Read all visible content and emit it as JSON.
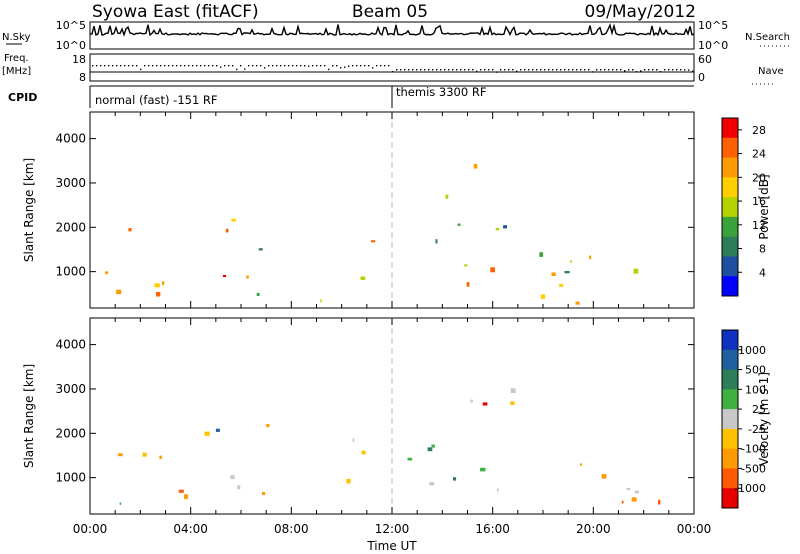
{
  "header": {
    "station": "Syowa East (fitACF)",
    "beam": "Beam 05",
    "date": "09/May/2012"
  },
  "top_panels": {
    "nsky_label": "N.Sky",
    "nsky_ticks": [
      "10^5",
      "10^0"
    ],
    "nsearch_label": "N.Search",
    "nsearch_ticks": [
      "10^5",
      "10^0"
    ],
    "freq_label": [
      "Freq.",
      "[MHz]"
    ],
    "freq_ticks": [
      "18",
      "8"
    ],
    "nave_label": "Nave",
    "nave_ticks": [
      "60",
      "0"
    ],
    "cpid_label": "CPID",
    "cpid_segments": [
      {
        "start_hour": 0,
        "text": "normal (fast) -151 RF"
      },
      {
        "start_hour": 12,
        "text": "themis 3300 RF"
      }
    ]
  },
  "chart_data": [
    {
      "type": "heatmap",
      "title": "",
      "ylabel": "Slant Range [km]",
      "xlabel": "",
      "xlim": [
        0,
        24
      ],
      "ylim": [
        180,
        4600
      ],
      "yticks": [
        "1000",
        "2000",
        "3000",
        "4000"
      ],
      "colorbar": {
        "label": "Power [dB]",
        "ticks": [
          "4",
          "8",
          "12",
          "16",
          "20",
          "24",
          "28"
        ],
        "range": [
          0,
          30
        ],
        "colors": [
          "#0000ff",
          "#1f4fa0",
          "#2e7d5a",
          "#3aa23a",
          "#b4d200",
          "#ffd000",
          "#ff9a00",
          "#ff6000",
          "#f00000"
        ]
      },
      "regions": [
        {
          "t0": 0.2,
          "t1": 3.8,
          "r0": 250,
          "r1": 2100,
          "level": 0.55
        },
        {
          "t0": 4.0,
          "t1": 7.2,
          "r0": 250,
          "r1": 2200,
          "level": 0.6
        },
        {
          "t0": 8.8,
          "t1": 10.2,
          "r0": 250,
          "r1": 1100,
          "level": 0.35
        },
        {
          "t0": 10.3,
          "t1": 11.9,
          "r0": 250,
          "r1": 2000,
          "level": 0.7
        },
        {
          "t0": 12.1,
          "t1": 23.9,
          "r0": 250,
          "r1": 1400,
          "level": 0.6
        },
        {
          "t0": 13.4,
          "t1": 16.8,
          "r0": 1500,
          "r1": 3400,
          "level": 0.55
        }
      ]
    },
    {
      "type": "heatmap",
      "title": "",
      "ylabel": "Slant Range [km]",
      "xlabel": "Time UT",
      "xlim": [
        0,
        24
      ],
      "ylim": [
        180,
        4600
      ],
      "xticks": [
        "00:00",
        "04:00",
        "08:00",
        "12:00",
        "16:00",
        "20:00",
        "00:00"
      ],
      "yticks": [
        "1000",
        "2000",
        "3000",
        "4000"
      ],
      "colorbar": {
        "label": "Velocity [m s-1]",
        "ticks": [
          "1000",
          "500",
          "100",
          "25",
          "-25",
          "-100",
          "-500",
          "-1000"
        ],
        "range": [
          -1000,
          1000
        ],
        "colors": [
          "#e60000",
          "#ff5a00",
          "#ff9a00",
          "#ffc000",
          "#c8c8c8",
          "#40b040",
          "#2e7d5a",
          "#2060a0",
          "#1030c0"
        ]
      },
      "regions": [
        {
          "t0": 0.2,
          "t1": 3.8,
          "r0": 250,
          "r1": 2100,
          "level": 0.4
        },
        {
          "t0": 4.0,
          "t1": 7.2,
          "r0": 250,
          "r1": 2200,
          "level": 0.55
        },
        {
          "t0": 8.8,
          "t1": 10.2,
          "r0": 250,
          "r1": 1100,
          "level": 0.4
        },
        {
          "t0": 10.3,
          "t1": 11.9,
          "r0": 250,
          "r1": 2000,
          "level": 0.3
        },
        {
          "t0": 12.1,
          "t1": 23.9,
          "r0": 250,
          "r1": 1400,
          "level": 0.45
        },
        {
          "t0": 13.4,
          "t1": 16.8,
          "r0": 1500,
          "r1": 3400,
          "level": 0.35
        }
      ]
    }
  ]
}
